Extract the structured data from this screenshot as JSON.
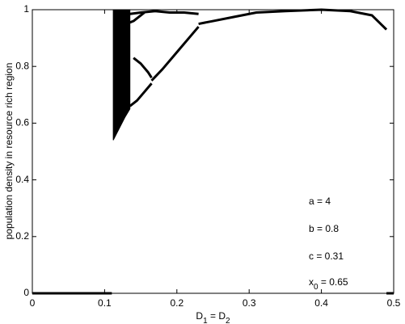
{
  "chart_data": {
    "type": "line",
    "xlabel": [
      {
        "text": "D",
        "sub": false
      },
      {
        "text": "1",
        "sub": true
      },
      {
        "text": " = D",
        "sub": false
      },
      {
        "text": "2",
        "sub": true
      }
    ],
    "ylabel": "population density in resource rich region",
    "annotations": [
      [
        {
          "text": "a = 4",
          "sub": false
        }
      ],
      [
        {
          "text": "b = 0.8",
          "sub": false
        }
      ],
      [
        {
          "text": "c = 0.31",
          "sub": false
        }
      ],
      [
        {
          "text": "x",
          "sub": false
        },
        {
          "text": "0",
          "sub": true
        },
        {
          "text": " = 0.65",
          "sub": false
        }
      ]
    ],
    "xlim": [
      0,
      0.5
    ],
    "ylim": [
      0,
      1
    ],
    "xticks": [
      0,
      0.1,
      0.2,
      0.3,
      0.4,
      0.5
    ],
    "yticks": [
      0,
      0.2,
      0.4,
      0.6,
      0.8,
      1
    ],
    "grid": false,
    "bands": [
      {
        "color": "#000000",
        "x": [
          0.112,
          0.12,
          0.128,
          0.135
        ],
        "low": [
          0.54,
          0.58,
          0.62,
          0.65
        ],
        "high": [
          1,
          1,
          1,
          1
        ]
      }
    ],
    "series": [
      {
        "color": "#000000",
        "x": [
          0,
          0.11
        ],
        "values": [
          0,
          0
        ]
      },
      {
        "color": "#000000",
        "x": [
          0.49,
          0.5
        ],
        "values": [
          0,
          0
        ]
      },
      {
        "color": "#000000",
        "x": [
          0.135,
          0.15,
          0.17,
          0.19,
          0.21,
          0.23
        ],
        "values": [
          0.985,
          0.99,
          0.995,
          0.99,
          0.99,
          0.985
        ]
      },
      {
        "color": "#000000",
        "x": [
          0.135,
          0.14,
          0.145,
          0.15,
          0.155
        ],
        "values": [
          0.955,
          0.96,
          0.97,
          0.98,
          0.99
        ]
      },
      {
        "color": "#000000",
        "x": [
          0.14,
          0.15,
          0.16,
          0.165
        ],
        "values": [
          0.83,
          0.81,
          0.78,
          0.76
        ]
      },
      {
        "color": "#000000",
        "x": [
          0.135,
          0.145,
          0.155,
          0.165
        ],
        "values": [
          0.66,
          0.68,
          0.71,
          0.74
        ]
      },
      {
        "color": "#000000",
        "x": [
          0.165,
          0.18,
          0.2,
          0.22,
          0.23
        ],
        "values": [
          0.75,
          0.79,
          0.85,
          0.91,
          0.94
        ]
      },
      {
        "color": "#000000",
        "x": [
          0.23,
          0.25,
          0.28,
          0.31,
          0.35,
          0.4,
          0.44,
          0.47,
          0.49
        ],
        "values": [
          0.95,
          0.96,
          0.975,
          0.99,
          0.995,
          1.0,
          0.995,
          0.98,
          0.93
        ]
      }
    ]
  }
}
